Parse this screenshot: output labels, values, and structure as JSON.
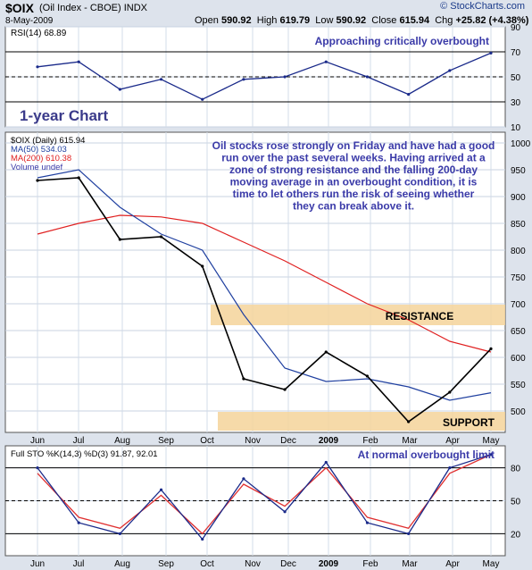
{
  "header": {
    "symbol": "$OIX",
    "name": "(Oil Index - CBOE) INDX",
    "date": "8-May-2009",
    "brand": "© StockCharts.com",
    "open_label": "Open",
    "open": "590.92",
    "high_label": "High",
    "high": "619.79",
    "low_label": "Low",
    "low": "590.92",
    "close_label": "Close",
    "close": "615.94",
    "chg_label": "Chg",
    "chg": "+25.82 (+4.38%)"
  },
  "rsi_panel": {
    "label": "RSI(14) 68.89",
    "annotation": "Approaching critically overbought",
    "chart_label": "1-year Chart",
    "ticks": [
      90,
      70,
      50,
      30,
      10
    ]
  },
  "price_panel": {
    "legend": [
      "$OIX (Daily) 615.94",
      "MA(50) 534.03",
      "MA(200) 610.38",
      "Volume undef"
    ],
    "annotation": [
      "Oil stocks rose strongly on Friday and have had a good",
      "run  over the past several weeks. Having arrived at a",
      "zone of strong resistance and the falling 200-day",
      "moving average in an overbought condition, it is",
      "time to let others run the risk of seeing whether",
      "they can break above it."
    ],
    "resistance_label": "RESISTANCE",
    "support_label": "SUPPORT",
    "ticks": [
      1000,
      950,
      900,
      850,
      800,
      750,
      700,
      650,
      600,
      550,
      500
    ]
  },
  "sto_panel": {
    "label": "Full STO %K(14,3) %D(3) 91.87, 92.01",
    "annotation": "At normal overbought limit",
    "ticks": [
      80,
      50,
      20
    ]
  },
  "x_axis": [
    "Jun",
    "Jul",
    "Aug",
    "Sep",
    "Oct",
    "Nov",
    "Dec",
    "2009",
    "Feb",
    "Mar",
    "Apr",
    "May"
  ],
  "colors": {
    "price": "#000000",
    "ma50": "#2040a0",
    "ma200": "#e02020",
    "zone": "#f5d39a",
    "annotation": "#3a3aa8",
    "k_line": "#1a2a8a",
    "d_line": "#e03030"
  },
  "chart_data": [
    {
      "type": "line",
      "title": "RSI(14) 68.89",
      "x": [
        "Jun",
        "Jul",
        "Aug",
        "Sep",
        "Oct",
        "Nov",
        "Dec",
        "2009",
        "Feb",
        "Mar",
        "Apr",
        "May"
      ],
      "series": [
        {
          "name": "RSI(14)",
          "values": [
            58,
            62,
            40,
            48,
            32,
            48,
            50,
            62,
            50,
            36,
            55,
            69
          ]
        }
      ],
      "ylim": [
        10,
        90
      ]
    },
    {
      "type": "line",
      "title": "$OIX (Daily) 615.94",
      "x": [
        "Jun",
        "Jul",
        "Aug",
        "Sep",
        "Oct",
        "Nov",
        "Dec",
        "2009",
        "Feb",
        "Mar",
        "Apr",
        "May"
      ],
      "series": [
        {
          "name": "$OIX (Daily) 615.94",
          "values": [
            930,
            935,
            820,
            825,
            770,
            560,
            540,
            610,
            565,
            480,
            535,
            616
          ]
        },
        {
          "name": "MA(50) 534.03",
          "values": [
            935,
            950,
            880,
            830,
            800,
            680,
            580,
            555,
            560,
            545,
            520,
            534
          ]
        },
        {
          "name": "MA(200) 610.38",
          "values": [
            830,
            850,
            865,
            862,
            850,
            815,
            780,
            740,
            700,
            670,
            630,
            610
          ]
        }
      ],
      "ylim": [
        460,
        1020
      ]
    },
    {
      "type": "line",
      "title": "Full STO %K(14,3) %D(3) 91.87, 92.01",
      "x": [
        "Jun",
        "Jul",
        "Aug",
        "Sep",
        "Oct",
        "Nov",
        "Dec",
        "2009",
        "Feb",
        "Mar",
        "Apr",
        "May"
      ],
      "series": [
        {
          "name": "%K",
          "values": [
            80,
            30,
            20,
            60,
            15,
            70,
            40,
            85,
            30,
            20,
            80,
            92
          ]
        },
        {
          "name": "%D",
          "values": [
            75,
            35,
            25,
            55,
            20,
            65,
            45,
            80,
            35,
            25,
            75,
            92
          ]
        }
      ],
      "ylim": [
        0,
        100
      ]
    }
  ]
}
